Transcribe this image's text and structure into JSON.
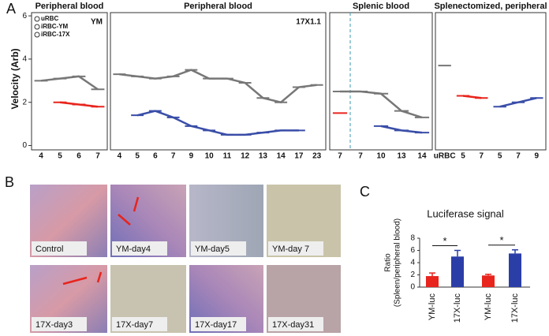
{
  "panel_labels": [
    "A",
    "B",
    "C"
  ],
  "velocity": {
    "y_label": "Velocity (Arb)",
    "ylim": [
      -0.2,
      6.15
    ],
    "yticks": [
      0,
      2,
      4,
      6
    ],
    "legend": [
      {
        "name": "uRBC",
        "color": "#777777"
      },
      {
        "name": "iRBC-YM",
        "color": "#d9534f"
      },
      {
        "name": "iRBC-17X",
        "color": "#3a4ea8"
      }
    ],
    "charts": [
      {
        "type": "line",
        "title": "Peripheral blood",
        "annotation": "YM",
        "categories": [
          "4",
          "5",
          "6",
          "7"
        ],
        "series": [
          {
            "color": "#777777",
            "values": [
              3.0,
              3.1,
              3.2,
              2.6
            ]
          },
          {
            "color": "#e8241c",
            "values": [
              null,
              2.0,
              1.9,
              1.8
            ]
          }
        ]
      },
      {
        "type": "line",
        "title": "Peripheral blood",
        "annotation": "17X1.1",
        "categories": [
          "4",
          "5",
          "6",
          "7",
          "9",
          "10",
          "11",
          "12",
          "13",
          "14",
          "17",
          "23"
        ],
        "series": [
          {
            "color": "#777777",
            "values": [
              3.3,
              3.2,
              3.1,
              3.2,
              3.5,
              3.1,
              3.1,
              2.9,
              2.2,
              2.0,
              2.7,
              2.8
            ]
          },
          {
            "color": "#3a4ea8",
            "values": [
              null,
              1.4,
              1.6,
              1.3,
              0.9,
              0.7,
              0.5,
              0.5,
              0.6,
              0.7,
              0.7,
              null
            ]
          }
        ]
      },
      {
        "type": "line",
        "title": "Splenic blood",
        "dashed_divider": true,
        "categories": [
          "7",
          "7",
          "10",
          "13",
          "14"
        ],
        "series": [
          {
            "color": "#777777",
            "values": [
              2.5,
              2.5,
              2.4,
              1.6,
              1.3
            ]
          },
          {
            "color": "#e8241c",
            "values": [
              1.5,
              null,
              null,
              null,
              null
            ]
          },
          {
            "color": "#3a4ea8",
            "values": [
              null,
              null,
              0.9,
              0.7,
              0.6
            ]
          }
        ]
      },
      {
        "type": "line",
        "title": "Splenectomized, peripheral",
        "categories": [
          "uRBC",
          "5",
          "7",
          "5",
          "7",
          "9"
        ],
        "series": [
          {
            "color": "#777777",
            "values": [
              3.7,
              null,
              null,
              null,
              null,
              null
            ]
          },
          {
            "color": "#e8241c",
            "values": [
              null,
              2.3,
              2.2,
              null,
              null,
              null
            ]
          },
          {
            "color": "#3a4ea8",
            "values": [
              null,
              null,
              null,
              1.8,
              2.0,
              2.2
            ]
          }
        ]
      }
    ]
  },
  "histology": {
    "labels": [
      "Control",
      "YM-day4",
      "YM-day5",
      "YM-day 7",
      "17X-day3",
      "17X-day7",
      "17X-day17",
      "17X-day31"
    ]
  },
  "luciferase": {
    "type": "bar",
    "title": "Luciferase signal",
    "y_label": [
      "Ratio",
      "(Spleen/peripheral  blood)"
    ],
    "categories": [
      "YM-luc",
      "17X-luc",
      "YM-luc",
      "17X-luc"
    ],
    "values": [
      1.8,
      5.0,
      1.9,
      5.5
    ],
    "errors": [
      0.5,
      1.0,
      0.2,
      0.6
    ],
    "colors": [
      "#e8241c",
      "#2b3ea8",
      "#e8241c",
      "#2b3ea8"
    ],
    "ylim": [
      0,
      8
    ],
    "yticks": [
      0,
      2,
      4,
      6,
      8
    ],
    "annotations": [
      "*",
      "*"
    ]
  }
}
